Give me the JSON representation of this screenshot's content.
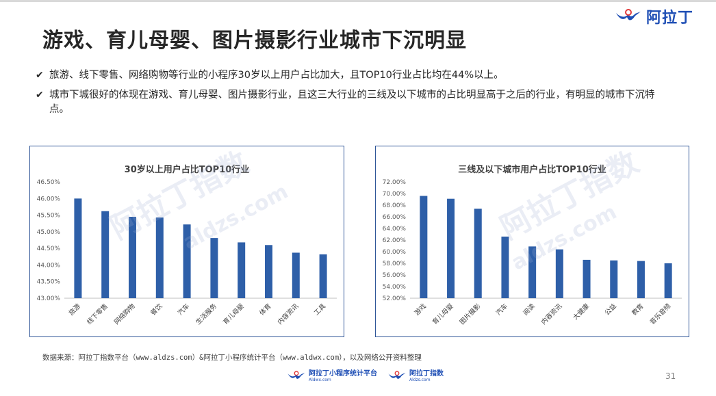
{
  "header": {
    "title": "游戏、育儿母婴、图片摄影行业城市下沉明显",
    "logo_text": "阿拉丁"
  },
  "bullets": [
    "旅游、线下零售、网络购物等行业的小程序30岁以上用户占比加大，且TOP10行业占比均在44%以上。",
    "城市下城很好的体现在游戏、育儿母婴、图片摄影行业，且这三大行业的三线及以下城市的占比明显高于之后的行业，有明显的城市下沉特点。"
  ],
  "chart_data": [
    {
      "type": "bar",
      "title": "30岁以上用户占比TOP10行业",
      "categories": [
        "旅游",
        "线下零售",
        "网络购物",
        "餐饮",
        "汽车",
        "生活服务",
        "育儿母婴",
        "体育",
        "内容资讯",
        "工具"
      ],
      "values": [
        46.0,
        45.62,
        45.45,
        45.43,
        45.22,
        44.81,
        44.68,
        44.6,
        44.37,
        44.32
      ],
      "yticks": [
        "43.00%",
        "43.50%",
        "44.00%",
        "44.50%",
        "45.00%",
        "45.50%",
        "46.00%",
        "46.50%"
      ],
      "ylim": [
        43.0,
        46.5
      ],
      "color": "#2e5fa8",
      "grid": false
    },
    {
      "type": "bar",
      "title": "三线及以下城市用户占比TOP10行业",
      "categories": [
        "游戏",
        "育儿母婴",
        "图片摄影",
        "汽车",
        "阅读",
        "内容资讯",
        "大健康",
        "公益",
        "教育",
        "音乐音频"
      ],
      "values": [
        69.6,
        69.1,
        67.4,
        62.6,
        60.9,
        60.4,
        58.6,
        58.5,
        58.4,
        58.0
      ],
      "yticks": [
        "52.00%",
        "54.00%",
        "56.00%",
        "58.00%",
        "60.00%",
        "62.00%",
        "64.00%",
        "66.00%",
        "68.00%",
        "70.00%",
        "72.00%"
      ],
      "ylim": [
        52.0,
        72.0
      ],
      "color": "#2e5fa8",
      "grid": false
    }
  ],
  "footer": {
    "source": "数据来源：阿拉丁指数平台（www.aldzs.com）&阿拉丁小程序统计平台（www.aldwx.com），以及网络公开资料整理",
    "logo1_name": "阿拉丁小程序统计平台",
    "logo1_url": "Aldwx.com",
    "logo2_name": "阿拉丁指数",
    "logo2_url": "Aldzs.com",
    "page_number": "31"
  },
  "watermark": {
    "text": "阿拉丁指数",
    "url": "aldzs.com"
  }
}
